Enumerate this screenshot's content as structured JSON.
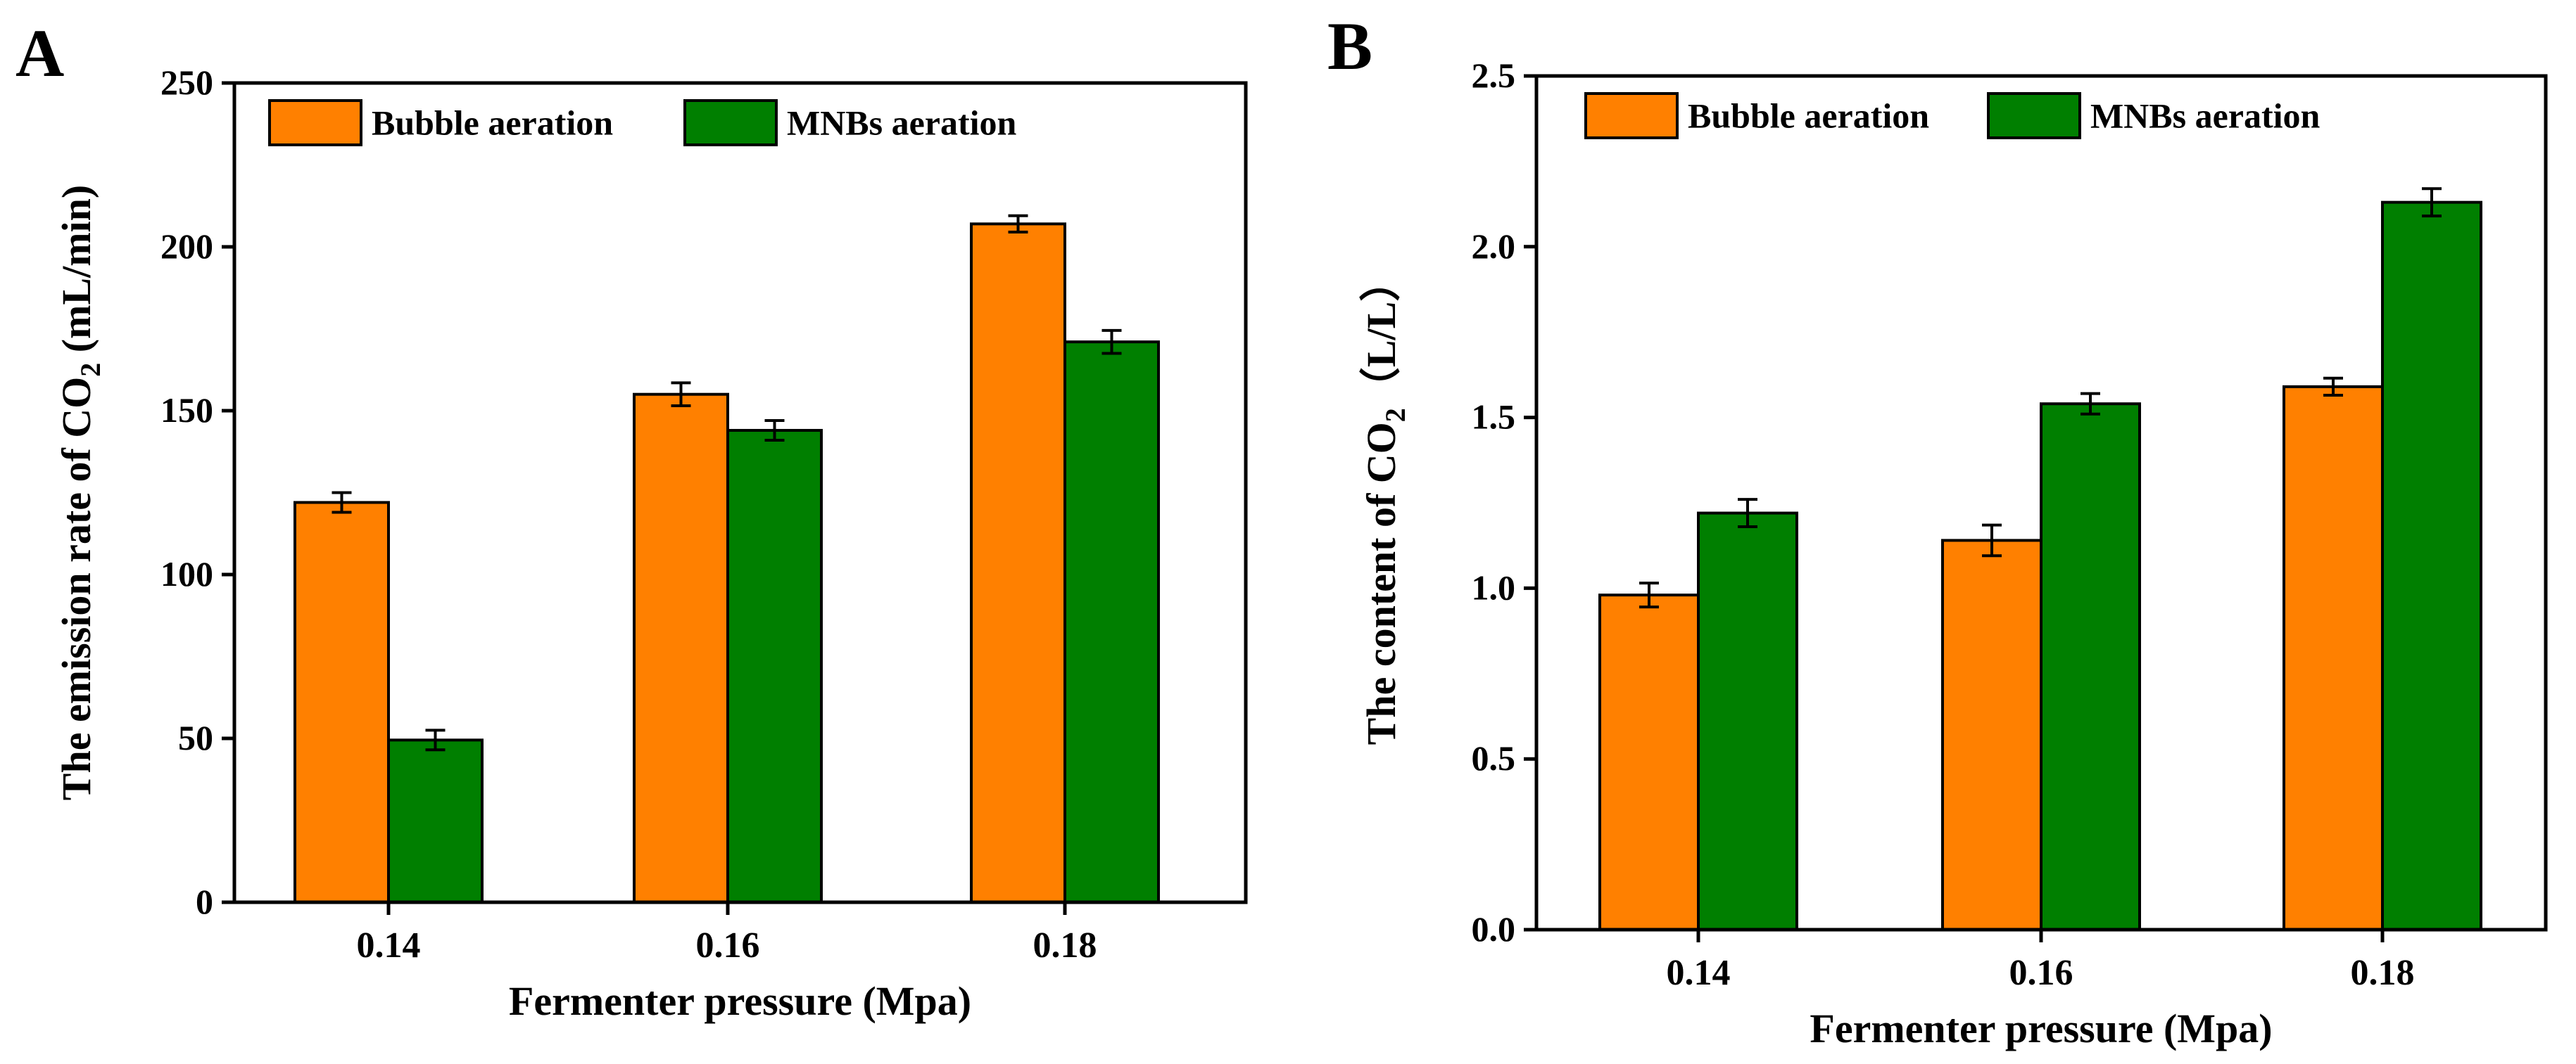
{
  "figure": {
    "description_free": true
  },
  "colors": {
    "bubble": "#FF8000",
    "mnbs": "#007F00",
    "axis": "#000000",
    "background": "#FFFFFF"
  },
  "chart_data": [
    {
      "panel_label": "A",
      "type": "bar",
      "title": "",
      "xlabel": "Fermenter pressure (Mpa)",
      "ylabel_parts": [
        "The emission rate of CO",
        "2",
        " (mL/min)"
      ],
      "categories": [
        "0.14",
        "0.16",
        "0.18"
      ],
      "ylim": [
        0,
        250
      ],
      "yticks": [
        0,
        50,
        100,
        150,
        200,
        250
      ],
      "ytick_labels": [
        "0",
        "50",
        "100",
        "150",
        "200",
        "250"
      ],
      "legend_position": "top-left",
      "series": [
        {
          "name": "Bubble aeration",
          "color": "#FF8000",
          "values": [
            122,
            155,
            207
          ],
          "errors": [
            3,
            3.5,
            2.5
          ]
        },
        {
          "name": "MNBs aeration",
          "color": "#007F00",
          "values": [
            49.5,
            144,
            171
          ],
          "errors": [
            3,
            3,
            3.5
          ]
        }
      ]
    },
    {
      "panel_label": "B",
      "type": "bar",
      "title": "",
      "xlabel": "Fermenter pressure (Mpa)",
      "ylabel_parts": [
        "The content of CO",
        "2",
        "（L/L）"
      ],
      "categories": [
        "0.14",
        "0.16",
        "0.18"
      ],
      "ylim": [
        0,
        2.5
      ],
      "yticks": [
        0,
        0.5,
        1.0,
        1.5,
        2.0,
        2.5
      ],
      "ytick_labels": [
        "0.0",
        "0.5",
        "1.0",
        "1.5",
        "2.0",
        "2.5"
      ],
      "legend_position": "top-left",
      "series": [
        {
          "name": "Bubble aeration",
          "color": "#FF8000",
          "values": [
            0.98,
            1.14,
            1.59
          ],
          "errors": [
            0.035,
            0.045,
            0.025
          ]
        },
        {
          "name": "MNBs aeration",
          "color": "#007F00",
          "values": [
            1.22,
            1.54,
            2.13
          ],
          "errors": [
            0.04,
            0.03,
            0.04
          ]
        }
      ]
    }
  ]
}
